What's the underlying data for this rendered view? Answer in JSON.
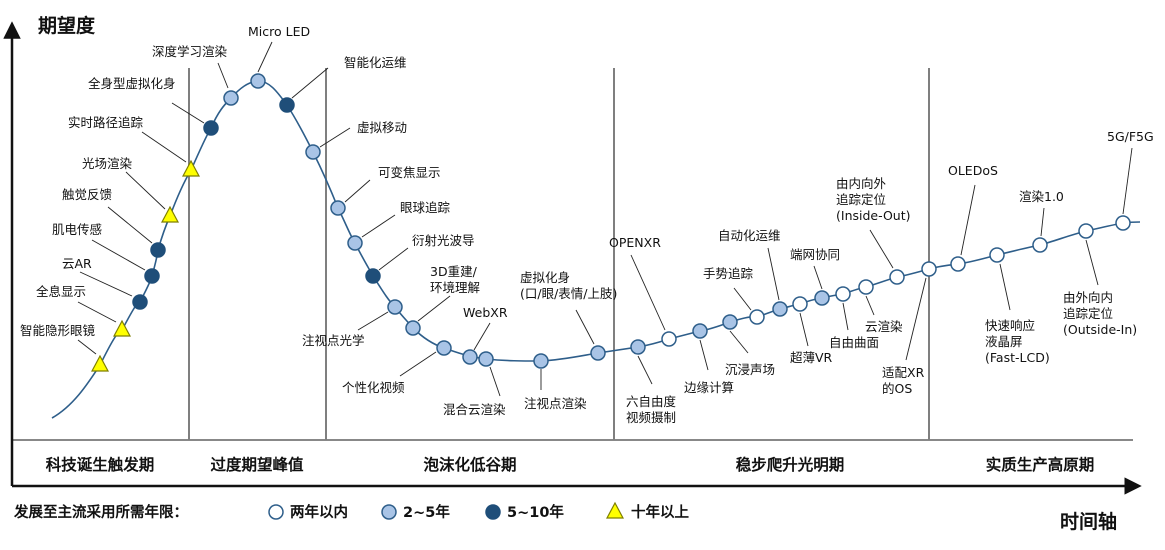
{
  "axes": {
    "y_title": "期望度",
    "x_title": "时间轴"
  },
  "phases": [
    "科技诞生触发期",
    "过度期望峰值",
    "泡沫化低谷期",
    "稳步爬升光明期",
    "实质生产高原期"
  ],
  "legend": {
    "title": "发展至主流采用所需年限：",
    "items": [
      {
        "key": "lt2",
        "label": "两年以内"
      },
      {
        "key": "y2_5",
        "label": "2~5年"
      },
      {
        "key": "y5_10",
        "label": "5~10年"
      },
      {
        "key": "gt10",
        "label": "十年以上"
      }
    ]
  },
  "marker_colors": {
    "lt2": "#ffffff",
    "y2_5": "#a9c4e6",
    "y5_10": "#1f4e79",
    "gt10": "#ffff00"
  },
  "technologies": [
    {
      "id": "smart-contact-lens",
      "lines": [
        "智能隐形眼镜"
      ],
      "marker": "gt10",
      "phase": "科技诞生触发期"
    },
    {
      "id": "holographic-display",
      "lines": [
        "全息显示"
      ],
      "marker": "gt10",
      "phase": "科技诞生触发期"
    },
    {
      "id": "cloud-ar",
      "lines": [
        "云AR"
      ],
      "marker": "y5_10",
      "phase": "科技诞生触发期"
    },
    {
      "id": "emg-sensing",
      "lines": [
        "肌电传感"
      ],
      "marker": "y5_10",
      "phase": "科技诞生触发期"
    },
    {
      "id": "haptic-feedback",
      "lines": [
        "触觉反馈"
      ],
      "marker": "y5_10",
      "phase": "科技诞生触发期"
    },
    {
      "id": "light-field-rendering",
      "lines": [
        "光场渲染"
      ],
      "marker": "gt10",
      "phase": "科技诞生触发期"
    },
    {
      "id": "real-time-path-tracing",
      "lines": [
        "实时路径追踪"
      ],
      "marker": "gt10",
      "phase": "科技诞生触发期"
    },
    {
      "id": "full-body-avatar",
      "lines": [
        "全身型虚拟化身"
      ],
      "marker": "y5_10",
      "phase": "过度期望峰值"
    },
    {
      "id": "deep-learning-rendering",
      "lines": [
        "深度学习渲染"
      ],
      "marker": "y2_5",
      "phase": "过度期望峰值"
    },
    {
      "id": "micro-led",
      "lines": [
        "Micro LED"
      ],
      "marker": "y2_5",
      "phase": "过度期望峰值"
    },
    {
      "id": "intelligent-ops",
      "lines": [
        "智能化运维"
      ],
      "marker": "y5_10",
      "phase": "过度期望峰值"
    },
    {
      "id": "virtual-mobility",
      "lines": [
        "虚拟移动"
      ],
      "marker": "y2_5",
      "phase": "泡沫化低谷期"
    },
    {
      "id": "varifocal-display",
      "lines": [
        "可变焦显示"
      ],
      "marker": "y2_5",
      "phase": "泡沫化低谷期"
    },
    {
      "id": "eye-tracking",
      "lines": [
        "眼球追踪"
      ],
      "marker": "y2_5",
      "phase": "泡沫化低谷期"
    },
    {
      "id": "diffractive-waveguide",
      "lines": [
        "衍射光波导"
      ],
      "marker": "y5_10",
      "phase": "泡沫化低谷期"
    },
    {
      "id": "foveated-optics",
      "lines": [
        "注视点光学"
      ],
      "marker": "y2_5",
      "phase": "泡沫化低谷期"
    },
    {
      "id": "3d-reconstruction",
      "lines": [
        "3D重建/",
        "环境理解"
      ],
      "marker": "y2_5",
      "phase": "泡沫化低谷期"
    },
    {
      "id": "personalized-video",
      "lines": [
        "个性化视频"
      ],
      "marker": "y2_5",
      "phase": "泡沫化低谷期"
    },
    {
      "id": "webxr",
      "lines": [
        "WebXR"
      ],
      "marker": "y2_5",
      "phase": "泡沫化低谷期"
    },
    {
      "id": "hybrid-cloud-rendering",
      "lines": [
        "混合云渲染"
      ],
      "marker": "y2_5",
      "phase": "泡沫化低谷期"
    },
    {
      "id": "foveated-rendering",
      "lines": [
        "注视点渲染"
      ],
      "marker": "y2_5",
      "phase": "泡沫化低谷期"
    },
    {
      "id": "avatar-face-body",
      "lines": [
        "虚拟化身",
        "(口/眼/表情/上肢)"
      ],
      "marker": "y2_5",
      "phase": "泡沫化低谷期"
    },
    {
      "id": "6dof-video",
      "lines": [
        "六自由度",
        "视频摄制"
      ],
      "marker": "y2_5",
      "phase": "稳步爬升光明期"
    },
    {
      "id": "openxr",
      "lines": [
        "OPENXR"
      ],
      "marker": "lt2",
      "phase": "稳步爬升光明期"
    },
    {
      "id": "edge-computing",
      "lines": [
        "边缘计算"
      ],
      "marker": "y2_5",
      "phase": "稳步爬升光明期"
    },
    {
      "id": "immersive-audio",
      "lines": [
        "沉浸声场"
      ],
      "marker": "y2_5",
      "phase": "稳步爬升光明期"
    },
    {
      "id": "gesture-tracking",
      "lines": [
        "手势追踪"
      ],
      "marker": "lt2",
      "phase": "稳步爬升光明期"
    },
    {
      "id": "automated-ops",
      "lines": [
        "自动化运维"
      ],
      "marker": "y2_5",
      "phase": "稳步爬升光明期"
    },
    {
      "id": "ultrathin-vr",
      "lines": [
        "超薄VR"
      ],
      "marker": "lt2",
      "phase": "稳步爬升光明期"
    },
    {
      "id": "device-network-collab",
      "lines": [
        "端网协同"
      ],
      "marker": "y2_5",
      "phase": "稳步爬升光明期"
    },
    {
      "id": "freeform-surface",
      "lines": [
        "自由曲面"
      ],
      "marker": "lt2",
      "phase": "稳步爬升光明期"
    },
    {
      "id": "cloud-rendering",
      "lines": [
        "云渲染"
      ],
      "marker": "lt2",
      "phase": "稳步爬升光明期"
    },
    {
      "id": "inside-out-tracking",
      "lines": [
        "由内向外",
        "追踪定位",
        "(Inside-Out)"
      ],
      "marker": "lt2",
      "phase": "稳步爬升光明期"
    },
    {
      "id": "xr-os",
      "lines": [
        "适配XR",
        "的OS"
      ],
      "marker": "lt2",
      "phase": "实质生产高原期"
    },
    {
      "id": "oledos",
      "lines": [
        "OLEDoS"
      ],
      "marker": "lt2",
      "phase": "实质生产高原期"
    },
    {
      "id": "fast-lcd",
      "lines": [
        "快速响应",
        "液晶屏",
        "(Fast-LCD)"
      ],
      "marker": "lt2",
      "phase": "实质生产高原期"
    },
    {
      "id": "rendering-1-0",
      "lines": [
        "渲染1.0"
      ],
      "marker": "lt2",
      "phase": "实质生产高原期"
    },
    {
      "id": "outside-in-tracking",
      "lines": [
        "由外向内",
        "追踪定位",
        "(Outside-In)"
      ],
      "marker": "lt2",
      "phase": "实质生产高原期"
    },
    {
      "id": "5g-f5g",
      "lines": [
        "5G/F5G"
      ],
      "marker": "lt2",
      "phase": "实质生产高原期"
    }
  ]
}
